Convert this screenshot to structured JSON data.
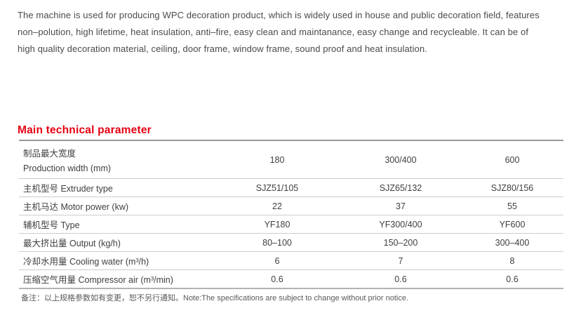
{
  "intro": {
    "lines": [
      "The machine is used for producing WPC decoration product, which is widely used in house and public decoration field, features",
      "non–polution, high lifetime, heat insulation, anti–fire, easy clean and maintanance, easy change and recycleable. It can be of",
      "high quality decoration material, ceiling, door frame, window frame, sound proof and heat insulation."
    ]
  },
  "section": {
    "title": "Main technical parameter",
    "title_color": "#e60012"
  },
  "table": {
    "rows": [
      {
        "label_lines": [
          "制品最大宽度",
          "Production width (mm)"
        ],
        "values": [
          "180",
          "300/400",
          "600"
        ]
      },
      {
        "label_lines": [
          "主机型号 Extruder type"
        ],
        "values": [
          "SJZ51/105",
          "SJZ65/132",
          "SJZ80/156"
        ]
      },
      {
        "label_lines": [
          "主机马达 Motor power (kw)"
        ],
        "values": [
          "22",
          "37",
          "55"
        ]
      },
      {
        "label_lines": [
          "辅机型号 Type"
        ],
        "values": [
          "YF180",
          "YF300/400",
          "YF600"
        ]
      },
      {
        "label_lines": [
          "最大挤出量 Output (kg/h)"
        ],
        "values": [
          "80–100",
          "150–200",
          "300–400"
        ]
      },
      {
        "label_lines": [
          "冷却水用量 Cooling water (m³/h)"
        ],
        "values": [
          "6",
          "7",
          "8"
        ]
      },
      {
        "label_lines": [
          "压缩空气用量 Compressor air (m³/min)"
        ],
        "values": [
          "0.6",
          "0.6",
          "0.6"
        ]
      }
    ]
  },
  "footnote": {
    "text": "备注：以上规格参数如有变更，恕不另行通知。Note:The specifications are subject to change without prior notice."
  }
}
